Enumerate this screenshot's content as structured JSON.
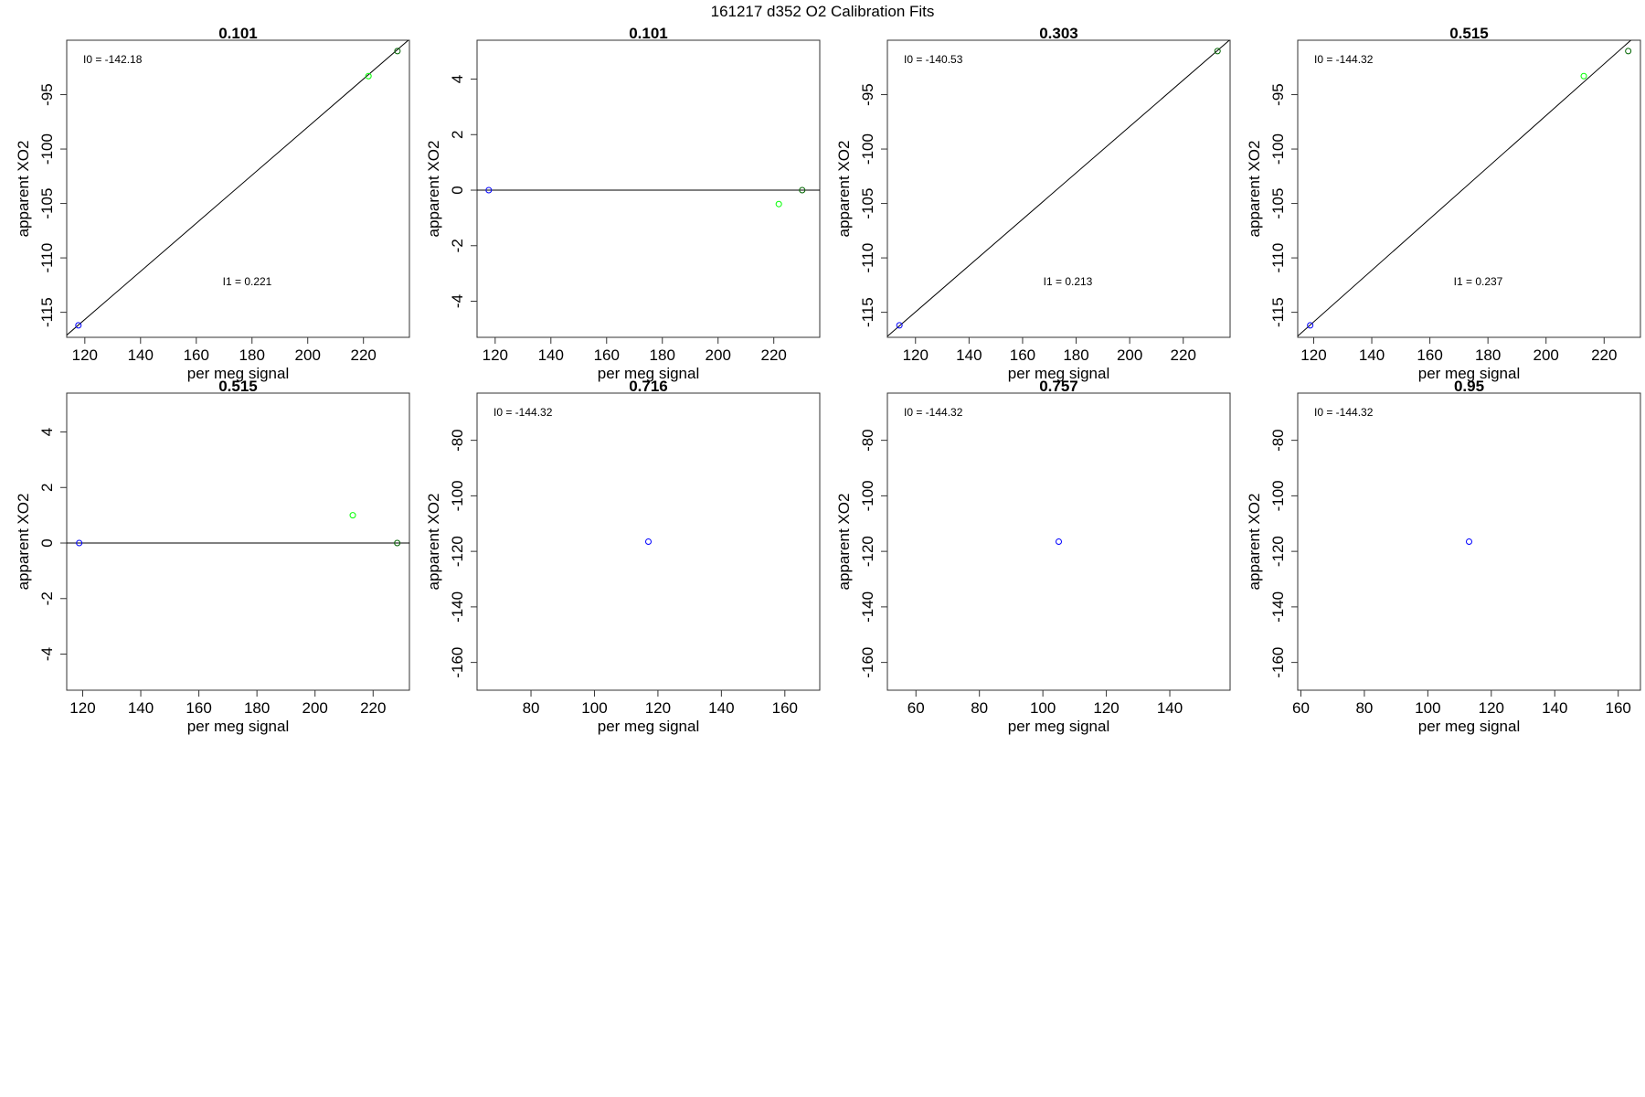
{
  "page_title": "161217   d352   O2 Calibration Fits",
  "colors": {
    "frame": "#333333",
    "text": "#000000",
    "blue": "#0000ff",
    "green": "#00ff00",
    "dark": "#006400"
  },
  "chart_data": [
    {
      "type": "scatter",
      "title": "0.101",
      "xlabel": "per meg signal",
      "ylabel": "apparent XO2",
      "xlim": [
        113.5,
        236.5
      ],
      "ylim": [
        -117.3,
        -90.0
      ],
      "xticks": [
        120,
        140,
        160,
        180,
        200,
        220
      ],
      "yticks": [
        -95,
        -100,
        -105,
        -110,
        -115
      ],
      "points": [
        {
          "x": 117.7,
          "y": -116.2,
          "color": "blue"
        },
        {
          "x": 221.8,
          "y": -93.3,
          "color": "green"
        },
        {
          "x": 232.2,
          "y": -91.0,
          "color": "dark"
        }
      ],
      "line": {
        "intercept": -142.18,
        "slope": 0.221
      },
      "annotations": [
        {
          "text": "I0 =  -142.18",
          "pos": "top-left"
        },
        {
          "text": "I1 =  0.221",
          "pos": "middle"
        }
      ]
    },
    {
      "type": "scatter",
      "title": "0.101",
      "xlabel": "per meg signal",
      "ylabel": "apparent XO2",
      "xlim": [
        113.5,
        236.5
      ],
      "ylim": [
        -5.3,
        5.4
      ],
      "xticks": [
        120,
        140,
        160,
        180,
        200,
        220
      ],
      "yticks": [
        4,
        2,
        0,
        -2,
        -4
      ],
      "points": [
        {
          "x": 117.7,
          "y": 0.0,
          "color": "blue"
        },
        {
          "x": 221.8,
          "y": -0.5,
          "color": "green"
        },
        {
          "x": 230.2,
          "y": 0.0,
          "color": "dark"
        }
      ],
      "line": {
        "intercept": 0,
        "slope": 0
      },
      "annotations": []
    },
    {
      "type": "scatter",
      "title": "0.303",
      "xlabel": "per meg signal",
      "ylabel": "apparent XO2",
      "xlim": [
        109.5,
        237.5
      ],
      "ylim": [
        -117.3,
        -90.0
      ],
      "xticks": [
        120,
        140,
        160,
        180,
        200,
        220
      ],
      "yticks": [
        -95,
        -100,
        -105,
        -110,
        -115
      ],
      "points": [
        {
          "x": 114.0,
          "y": -116.2,
          "color": "blue"
        },
        {
          "x": 232.8,
          "y": -91.0,
          "color": "dark"
        }
      ],
      "line": {
        "intercept": -140.53,
        "slope": 0.213
      },
      "annotations": [
        {
          "text": "I0 =  -140.53",
          "pos": "top-left"
        },
        {
          "text": "I1 =  0.213",
          "pos": "middle"
        }
      ]
    },
    {
      "type": "scatter",
      "title": "0.515",
      "xlabel": "per meg signal",
      "ylabel": "apparent XO2",
      "xlim": [
        114.5,
        232.5
      ],
      "ylim": [
        -117.3,
        -90.0
      ],
      "xticks": [
        120,
        140,
        160,
        180,
        200,
        220
      ],
      "yticks": [
        -95,
        -100,
        -105,
        -110,
        -115
      ],
      "points": [
        {
          "x": 118.8,
          "y": -116.2,
          "color": "blue"
        },
        {
          "x": 213.0,
          "y": -93.3,
          "color": "green"
        },
        {
          "x": 228.3,
          "y": -91.0,
          "color": "dark"
        }
      ],
      "line": {
        "intercept": -144.32,
        "slope": 0.237
      },
      "annotations": [
        {
          "text": "I0 =  -144.32",
          "pos": "top-left"
        },
        {
          "text": "I1 =  0.237",
          "pos": "middle"
        }
      ]
    },
    {
      "type": "scatter",
      "title": "0.515",
      "xlabel": "per meg signal",
      "ylabel": "apparent XO2",
      "xlim": [
        114.5,
        232.5
      ],
      "ylim": [
        -5.3,
        5.4
      ],
      "xticks": [
        120,
        140,
        160,
        180,
        200,
        220
      ],
      "yticks": [
        4,
        2,
        0,
        -2,
        -4
      ],
      "points": [
        {
          "x": 118.8,
          "y": 0.0,
          "color": "blue"
        },
        {
          "x": 213.0,
          "y": 1.0,
          "color": "green"
        },
        {
          "x": 228.3,
          "y": 0.0,
          "color": "dark"
        }
      ],
      "line": {
        "intercept": 0,
        "slope": 0
      },
      "annotations": []
    },
    {
      "type": "scatter",
      "title": "0.716",
      "xlabel": "per meg signal",
      "ylabel": "apparent XO2",
      "xlim": [
        63,
        171
      ],
      "ylim": [
        -170,
        -63
      ],
      "xticks": [
        80,
        100,
        120,
        140,
        160
      ],
      "yticks": [
        -80,
        -100,
        -120,
        -140,
        -160
      ],
      "points": [
        {
          "x": 117,
          "y": -116.5,
          "color": "blue"
        }
      ],
      "annotations": [
        {
          "text": "I0 =  -144.32",
          "pos": "top-left"
        }
      ]
    },
    {
      "type": "scatter",
      "title": "0.757",
      "xlabel": "per meg signal",
      "ylabel": "apparent XO2",
      "xlim": [
        51,
        159
      ],
      "ylim": [
        -170,
        -63
      ],
      "xticks": [
        60,
        80,
        100,
        120,
        140
      ],
      "yticks": [
        -80,
        -100,
        -120,
        -140,
        -160
      ],
      "points": [
        {
          "x": 105,
          "y": -116.5,
          "color": "blue"
        }
      ],
      "annotations": [
        {
          "text": "I0 =  -144.32",
          "pos": "top-left"
        }
      ]
    },
    {
      "type": "scatter",
      "title": "0.95",
      "xlabel": "per meg signal",
      "ylabel": "apparent XO2",
      "xlim": [
        59,
        167
      ],
      "ylim": [
        -170,
        -63
      ],
      "xticks": [
        60,
        80,
        100,
        120,
        140,
        160
      ],
      "yticks": [
        -80,
        -100,
        -120,
        -140,
        -160
      ],
      "points": [
        {
          "x": 113,
          "y": -116.5,
          "color": "blue"
        }
      ],
      "annotations": [
        {
          "text": "I0 =  -144.32",
          "pos": "top-left"
        }
      ]
    }
  ]
}
